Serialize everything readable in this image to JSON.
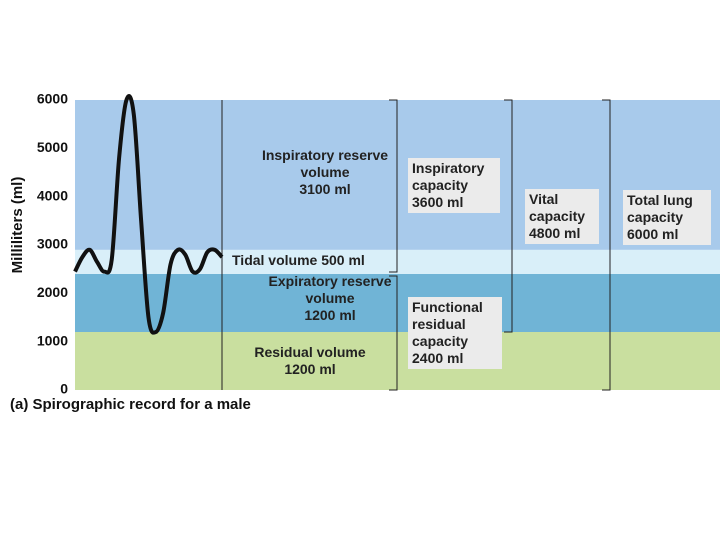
{
  "chart_data": {
    "type": "spirogram",
    "y_label": "Milliliters (ml)",
    "caption": "(a) Spirographic record for a male",
    "ylim": [
      0,
      6000
    ],
    "yticks": [
      0,
      1000,
      2000,
      3000,
      4000,
      5000,
      6000
    ],
    "series": [
      {
        "name": "Residual volume",
        "values": [
          1200
        ],
        "value_labels": [
          "1200 ml"
        ],
        "color": "#c9df9f"
      },
      {
        "name": "Expiratory reserve volume",
        "values": [
          1200
        ],
        "value_labels": [
          "1200 ml"
        ],
        "color": "#70b4d6"
      },
      {
        "name": "Tidal volume",
        "values": [
          500
        ],
        "value_labels": [
          "500 ml"
        ],
        "color": "#d9eff9"
      },
      {
        "name": "Inspiratory reserve volume",
        "values": [
          3100
        ],
        "value_labels": [
          "3100 ml"
        ],
        "color": "#a8caeb"
      }
    ],
    "capacities": [
      {
        "name": "Inspiratory capacity",
        "values": [
          3600
        ],
        "value_labels": [
          "3600 ml"
        ]
      },
      {
        "name": "Functional residual capacity",
        "values": [
          2400
        ],
        "value_labels": [
          "2400 ml"
        ]
      },
      {
        "name": "Vital capacity",
        "values": [
          4800
        ],
        "value_labels": [
          "4800 ml"
        ]
      },
      {
        "name": "Total lung capacity",
        "values": [
          6000
        ],
        "value_labels": [
          "6000 ml"
        ]
      }
    ],
    "trace": {
      "color": "#111111",
      "values": [
        2450,
        2750,
        2900,
        2650,
        2450,
        2700,
        4800,
        6000,
        5700,
        3500,
        1500,
        1200,
        1600,
        2600,
        2900,
        2800,
        2450,
        2500,
        2850,
        2900,
        2750
      ]
    }
  }
}
